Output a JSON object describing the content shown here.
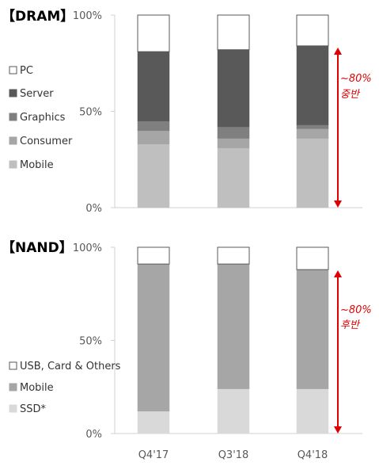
{
  "colors": {
    "pc": "#ffffff",
    "server": "#595959",
    "graphics": "#7f7f7f",
    "consumer": "#a6a6a6",
    "mobile": "#bfbfbf",
    "nand_mobile": "#a6a6a6",
    "ssd": "#d9d9d9",
    "usb": "#ffffff",
    "annotation": "#e00000",
    "axis": "#d0d0d0",
    "tick_text": "#595959"
  },
  "categories": [
    "Q4'17",
    "Q3'18",
    "Q4'18"
  ],
  "chart_data": [
    {
      "type": "bar",
      "stacked": true,
      "title": "【DRAM】",
      "categories": [
        "Q4'17",
        "Q3'18",
        "Q4'18"
      ],
      "y_ticks": [
        "100%",
        "50%",
        "0%"
      ],
      "ylim": [
        0,
        100
      ],
      "legend_position": "left",
      "series": [
        {
          "name": "Mobile",
          "values": [
            33,
            31,
            36
          ]
        },
        {
          "name": "Consumer",
          "values": [
            7,
            5,
            5
          ]
        },
        {
          "name": "Graphics",
          "values": [
            5,
            6,
            2
          ]
        },
        {
          "name": "Server",
          "values": [
            36,
            40,
            41
          ]
        },
        {
          "name": "PC",
          "values": [
            19,
            18,
            16
          ]
        }
      ],
      "annotation": {
        "value_label": "~80%",
        "text": "중반"
      }
    },
    {
      "type": "bar",
      "stacked": true,
      "title": "【NAND】",
      "categories": [
        "Q4'17",
        "Q3'18",
        "Q4'18"
      ],
      "y_ticks": [
        "100%",
        "50%",
        "0%"
      ],
      "ylim": [
        0,
        100
      ],
      "legend_position": "left",
      "series": [
        {
          "name": "SSD*",
          "values": [
            12,
            24,
            24
          ]
        },
        {
          "name": "Mobile",
          "values": [
            79,
            67,
            64
          ]
        },
        {
          "name": "USB, Card & Others",
          "values": [
            9,
            9,
            12
          ]
        }
      ],
      "annotation": {
        "value_label": "~80%",
        "text": "후반"
      }
    }
  ]
}
